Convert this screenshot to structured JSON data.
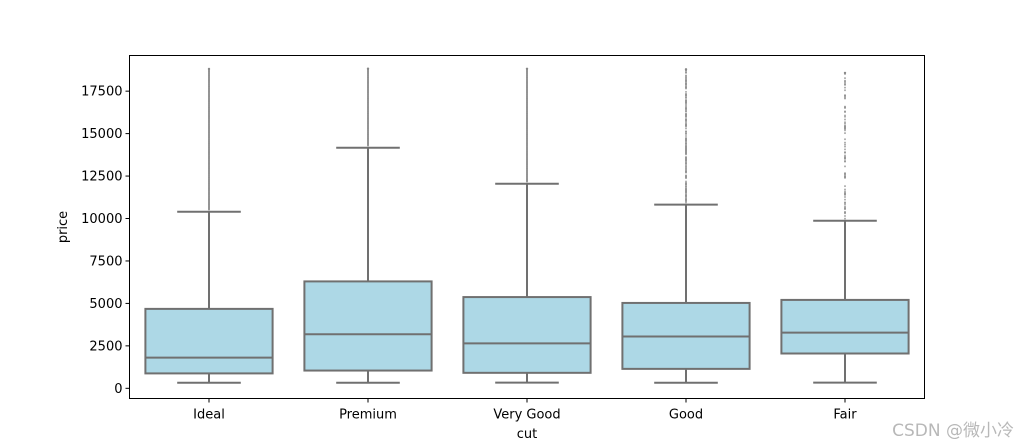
{
  "chart_data": {
    "type": "box",
    "title": "",
    "xlabel": "cut",
    "ylabel": "price",
    "ylim": [
      -600,
      19600
    ],
    "yticks": [
      0,
      2500,
      5000,
      7500,
      10000,
      12500,
      15000,
      17500
    ],
    "ytick_labels": [
      "0",
      "2500",
      "5000",
      "7500",
      "10000",
      "12500",
      "15000",
      "17500"
    ],
    "box_color": "#add8e6",
    "line_color": "#707070",
    "categories": [
      "Ideal",
      "Premium",
      "Very Good",
      "Good",
      "Fair"
    ],
    "boxes": [
      {
        "name": "Ideal",
        "whisker_low": 326,
        "q1": 878,
        "median": 1810,
        "q3": 4678,
        "whisker_high": 10400,
        "outlier_max": 18806
      },
      {
        "name": "Premium",
        "whisker_low": 326,
        "q1": 1046,
        "median": 3185,
        "q3": 6296,
        "whisker_high": 14170,
        "outlier_max": 18823
      },
      {
        "name": "Very Good",
        "whisker_low": 336,
        "q1": 912,
        "median": 2648,
        "q3": 5373,
        "whisker_high": 12050,
        "outlier_max": 18818
      },
      {
        "name": "Good",
        "whisker_low": 327,
        "q1": 1145,
        "median": 3050,
        "q3": 5028,
        "whisker_high": 10820,
        "outlier_max": 18788
      },
      {
        "name": "Fair",
        "whisker_low": 337,
        "q1": 2050,
        "median": 3282,
        "q3": 5206,
        "whisker_high": 9870,
        "outlier_max": 18574
      }
    ]
  },
  "watermark": "CSDN @微小冷"
}
